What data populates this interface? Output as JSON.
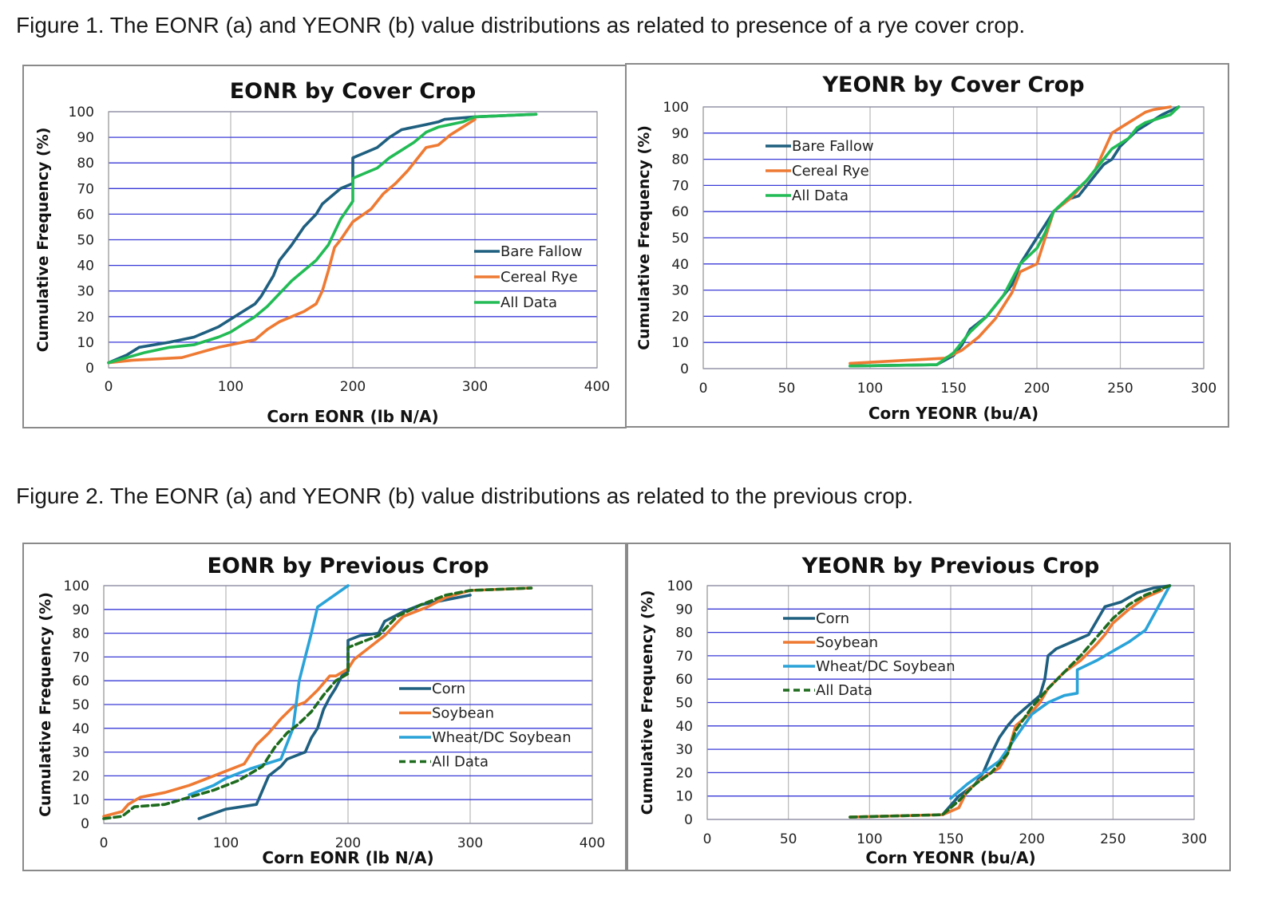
{
  "captions": {
    "figure1": "Figure 1. The EONR (a) and YEONR (b) value distributions as related to presence of a rye cover crop.",
    "figure2": "Figure 2. The EONR (a) and YEONR (b) value distributions as related to the previous crop."
  },
  "colors": {
    "grid_horizontal": "#3a3ad8",
    "grid_vertical": "#b8b8b8",
    "bare_fallow": "#1f5f7f",
    "cereal_rye": "#ee7a33",
    "all_data_cover": "#22bb55",
    "corn": "#1f5f7f",
    "soybean": "#ee7a33",
    "wheat_dc_soybean": "#2aa3d8",
    "all_data_previous": "#1e6b1e"
  },
  "chart_data": [
    {
      "id": "chart1",
      "type": "line",
      "title": "EONR by Cover Crop",
      "xlabel": "Corn EONR (lb N/A)",
      "ylabel": "Cumulative Frequency (%)",
      "xlim": [
        0,
        400
      ],
      "ylim": [
        0,
        100
      ],
      "xticks": [
        "0",
        "100",
        "200",
        "300",
        "400"
      ],
      "yticks": [
        "0",
        "10",
        "20",
        "30",
        "40",
        "50",
        "60",
        "70",
        "80",
        "90",
        "100"
      ],
      "legend_position": "center-right",
      "series": [
        {
          "name": "Bare Fallow",
          "color": "#1f5f7f",
          "dash": false,
          "x": [
            0,
            15,
            25,
            50,
            70,
            90,
            100,
            110,
            120,
            125,
            130,
            135,
            140,
            150,
            160,
            170,
            175,
            180,
            190,
            200,
            200,
            210,
            220,
            230,
            240,
            260,
            270,
            275,
            300,
            350
          ],
          "y": [
            2,
            5,
            8,
            10,
            12,
            16,
            19,
            22,
            25,
            28,
            32,
            36,
            42,
            48,
            55,
            60,
            64,
            66,
            70,
            72,
            82,
            84,
            86,
            90,
            93,
            95,
            96,
            97,
            98,
            99
          ]
        },
        {
          "name": "Cereal Rye",
          "color": "#ee7a33",
          "dash": false,
          "x": [
            0,
            20,
            60,
            75,
            90,
            100,
            120,
            130,
            140,
            150,
            160,
            170,
            175,
            180,
            185,
            190,
            200,
            215,
            225,
            235,
            245,
            255,
            260,
            270,
            280,
            290,
            300
          ],
          "y": [
            2,
            3,
            4,
            6,
            8,
            9,
            11,
            15,
            18,
            20,
            22,
            25,
            30,
            38,
            47,
            50,
            57,
            62,
            68,
            72,
            77,
            83,
            86,
            87,
            91,
            94,
            97
          ]
        },
        {
          "name": "All Data",
          "color": "#22bb55",
          "dash": false,
          "x": [
            0,
            15,
            30,
            50,
            70,
            90,
            100,
            110,
            120,
            130,
            140,
            150,
            160,
            170,
            180,
            190,
            200,
            200,
            210,
            220,
            230,
            240,
            250,
            260,
            270,
            290,
            300,
            350
          ],
          "y": [
            2,
            4,
            6,
            8,
            9,
            12,
            14,
            17,
            20,
            24,
            29,
            34,
            38,
            42,
            48,
            58,
            65,
            74,
            76,
            78,
            82,
            85,
            88,
            92,
            94,
            96,
            98,
            99
          ]
        }
      ]
    },
    {
      "id": "chart2",
      "type": "line",
      "title": "YEONR by Cover Crop",
      "xlabel": "Corn YEONR (bu/A)",
      "ylabel": "Cumulative Frequency (%)",
      "xlim": [
        0,
        300
      ],
      "ylim": [
        0,
        100
      ],
      "xticks": [
        "0",
        "50",
        "100",
        "150",
        "200",
        "250",
        "300"
      ],
      "yticks": [
        "0",
        "10",
        "20",
        "30",
        "40",
        "50",
        "60",
        "70",
        "80",
        "90",
        "100"
      ],
      "legend_position": "top-left",
      "series": [
        {
          "name": "Bare Fallow",
          "color": "#1f5f7f",
          "dash": false,
          "x": [
            88,
            140,
            150,
            155,
            160,
            170,
            175,
            180,
            185,
            190,
            195,
            200,
            205,
            210,
            215,
            220,
            225,
            230,
            235,
            240,
            245,
            250,
            255,
            260,
            265,
            270,
            275,
            285
          ],
          "y": [
            1,
            1.5,
            5,
            9,
            15,
            20,
            24,
            28,
            32,
            40,
            45,
            50,
            55,
            60,
            63,
            65,
            66,
            70,
            74,
            78,
            80,
            85,
            88,
            91,
            93,
            95,
            97,
            100
          ]
        },
        {
          "name": "Cereal Rye",
          "color": "#ee7a33",
          "dash": false,
          "x": [
            88,
            145,
            155,
            165,
            175,
            185,
            190,
            200,
            205,
            210,
            220,
            230,
            235,
            240,
            245,
            250,
            255,
            260,
            265,
            270,
            280
          ],
          "y": [
            2,
            4,
            7,
            12,
            19,
            29,
            37,
            40,
            50,
            60,
            65,
            72,
            76,
            83,
            90,
            92,
            94,
            96,
            98,
            99,
            100
          ]
        },
        {
          "name": "All Data",
          "color": "#22bb55",
          "dash": false,
          "x": [
            88,
            140,
            150,
            160,
            170,
            180,
            190,
            200,
            205,
            210,
            220,
            230,
            240,
            245,
            250,
            255,
            260,
            265,
            270,
            280,
            285
          ],
          "y": [
            1,
            1.5,
            6,
            14,
            20,
            28,
            40,
            46,
            52,
            60,
            66,
            72,
            80,
            84,
            86,
            88,
            92,
            94,
            95,
            97,
            100
          ]
        }
      ]
    },
    {
      "id": "chart3",
      "type": "line",
      "title": "EONR by Previous Crop",
      "xlabel": "Corn EONR (lb N/A)",
      "ylabel": "Cumulative Frequency (%)",
      "xlim": [
        0,
        400
      ],
      "ylim": [
        0,
        100
      ],
      "xticks": [
        "0",
        "100",
        "200",
        "300",
        "400"
      ],
      "yticks": [
        "0",
        "10",
        "20",
        "30",
        "40",
        "50",
        "60",
        "70",
        "80",
        "90",
        "100"
      ],
      "legend_position": "center-right",
      "series": [
        {
          "name": "Corn",
          "color": "#1f5f7f",
          "dash": false,
          "x": [
            78,
            100,
            125,
            135,
            145,
            150,
            165,
            170,
            175,
            180,
            185,
            190,
            195,
            200,
            200,
            210,
            225,
            230,
            245,
            260,
            300
          ],
          "y": [
            2,
            6,
            8,
            20,
            24,
            27,
            30,
            36,
            40,
            48,
            53,
            57,
            62,
            64,
            77,
            79,
            80,
            85,
            89,
            92,
            96
          ]
        },
        {
          "name": "Soybean",
          "color": "#ee7a33",
          "dash": false,
          "x": [
            0,
            15,
            20,
            30,
            50,
            70,
            80,
            90,
            100,
            115,
            125,
            135,
            145,
            155,
            165,
            175,
            185,
            190,
            200,
            205,
            215,
            230,
            245,
            265,
            280,
            300,
            350
          ],
          "y": [
            3,
            5,
            8,
            11,
            13,
            16,
            18,
            20,
            22,
            25,
            33,
            38,
            44,
            49,
            51,
            56,
            62,
            62,
            65,
            69,
            73,
            79,
            87,
            91,
            95,
            98,
            99
          ]
        },
        {
          "name": "Wheat/DC Soybean",
          "color": "#2aa3d8",
          "dash": false,
          "x": [
            70,
            90,
            100,
            120,
            145,
            155,
            160,
            165,
            170,
            175,
            200
          ],
          "y": [
            12,
            16,
            19,
            23,
            27,
            40,
            60,
            70,
            80,
            91,
            100
          ]
        },
        {
          "name": "All Data",
          "color": "#1e6b1e",
          "dash": true,
          "x": [
            0,
            15,
            25,
            50,
            70,
            90,
            110,
            130,
            140,
            150,
            160,
            170,
            180,
            190,
            200,
            200,
            210,
            225,
            240,
            260,
            280,
            300,
            350
          ],
          "y": [
            2,
            3,
            7,
            8,
            11,
            14,
            18,
            24,
            32,
            38,
            42,
            47,
            54,
            60,
            63,
            74,
            76,
            79,
            87,
            92,
            96,
            98,
            99
          ]
        }
      ]
    },
    {
      "id": "chart4",
      "type": "line",
      "title": "YEONR by Previous Crop",
      "xlabel": "Corn YEONR (bu/A)",
      "ylabel": "Cumulative Frequency (%)",
      "xlim": [
        0,
        300
      ],
      "ylim": [
        0,
        100
      ],
      "xticks": [
        "0",
        "50",
        "100",
        "150",
        "200",
        "250",
        "300"
      ],
      "yticks": [
        "0",
        "10",
        "20",
        "30",
        "40",
        "50",
        "60",
        "70",
        "80",
        "90",
        "100"
      ],
      "legend_position": "top-left",
      "series": [
        {
          "name": "Corn",
          "color": "#1f5f7f",
          "dash": false,
          "x": [
            145,
            155,
            165,
            170,
            175,
            180,
            185,
            190,
            195,
            200,
            205,
            208,
            210,
            215,
            225,
            235,
            240,
            245,
            255,
            265,
            275,
            285
          ],
          "y": [
            2,
            10,
            15,
            20,
            28,
            35,
            40,
            44,
            47,
            50,
            53,
            60,
            70,
            73,
            76,
            79,
            85,
            91,
            93,
            97,
            99,
            100
          ]
        },
        {
          "name": "Soybean",
          "color": "#ee7a33",
          "dash": false,
          "x": [
            88,
            145,
            155,
            160,
            170,
            180,
            185,
            190,
            200,
            205,
            210,
            220,
            230,
            240,
            245,
            250,
            260,
            270,
            280
          ],
          "y": [
            1,
            2,
            5,
            12,
            18,
            22,
            28,
            40,
            46,
            50,
            56,
            63,
            68,
            75,
            79,
            84,
            90,
            95,
            98
          ]
        },
        {
          "name": "Wheat/DC Soybean",
          "color": "#2aa3d8",
          "dash": false,
          "x": [
            150,
            160,
            170,
            180,
            190,
            200,
            210,
            220,
            228,
            228,
            240,
            250,
            260,
            270,
            285
          ],
          "y": [
            9,
            15,
            20,
            25,
            35,
            45,
            50,
            53,
            54,
            64,
            68,
            72,
            76,
            81,
            100
          ]
        },
        {
          "name": "All Data",
          "color": "#1e6b1e",
          "dash": true,
          "x": [
            88,
            145,
            155,
            165,
            175,
            185,
            190,
            200,
            210,
            220,
            230,
            240,
            250,
            260,
            270,
            285
          ],
          "y": [
            1,
            2,
            8,
            15,
            20,
            28,
            38,
            48,
            56,
            63,
            70,
            78,
            86,
            92,
            96,
            100
          ]
        }
      ]
    }
  ]
}
